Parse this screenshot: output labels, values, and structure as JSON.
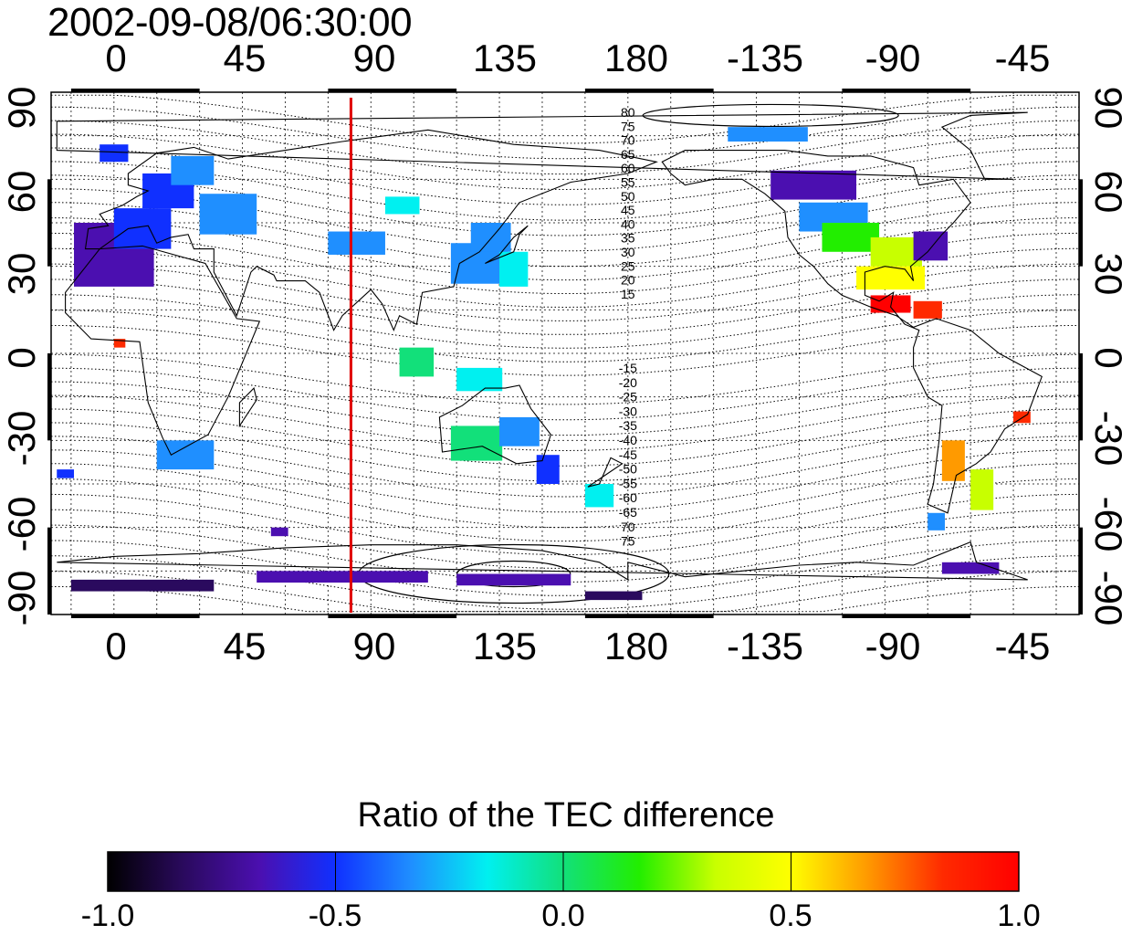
{
  "header": {
    "timestamp": "2002-09-08/06:30:00"
  },
  "axes": {
    "lon_ticks": [
      "0",
      "45",
      "90",
      "135",
      "180",
      "-135",
      "-90",
      "-45"
    ],
    "lat_ticks": [
      "90",
      "60",
      "30",
      "0",
      "-30",
      "-60",
      "-90"
    ]
  },
  "contour_labels": {
    "north": [
      "80",
      "75",
      "70",
      "65",
      "60",
      "55",
      "50",
      "45",
      "40",
      "35",
      "30",
      "25",
      "20",
      "15"
    ],
    "south": [
      "-15",
      "-20",
      "-25",
      "-30",
      "-35",
      "-40",
      "-45",
      "-50",
      "-55",
      "-60",
      "-65",
      "70",
      "75"
    ]
  },
  "marker": {
    "longitude": 83,
    "color": "#e00000"
  },
  "colorbar": {
    "title": "Ratio of the TEC difference",
    "range": [
      -1.0,
      1.0
    ],
    "tick_labels": [
      "-1.0",
      "-0.5",
      "0.0",
      "0.5",
      "1.0"
    ],
    "colors": [
      "#000000",
      "#2a0a5e",
      "#4b0fb0",
      "#1030ff",
      "#1f8fff",
      "#00f0f0",
      "#12e07a",
      "#22ee00",
      "#c8ff00",
      "#ffff00",
      "#ff9a00",
      "#ff2a00",
      "#ff0000"
    ]
  },
  "map": {
    "projection": "equirectangular",
    "lon_range": [
      -22,
      338
    ],
    "lat_range": [
      -90,
      90
    ],
    "central_lon": 158
  }
}
